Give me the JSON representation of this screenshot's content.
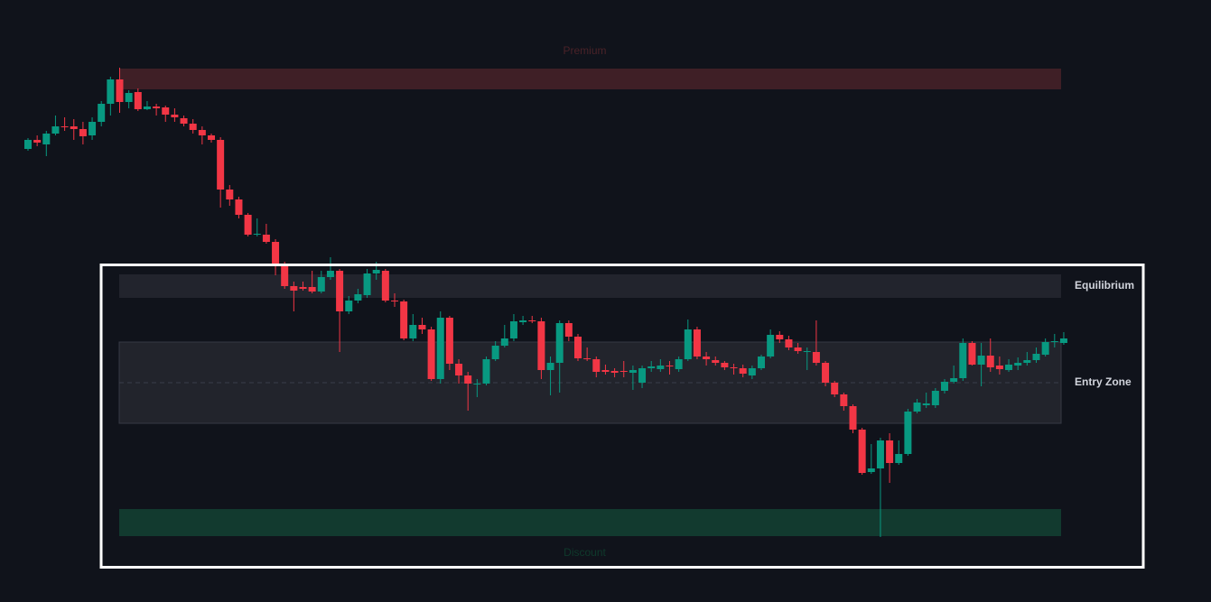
{
  "chart_data": {
    "type": "candlestick",
    "ylim": [
      0,
      667
    ],
    "up_color": "#089981",
    "down_color": "#f23645",
    "open": [
      502,
      512,
      507,
      519,
      527,
      527,
      524,
      517,
      532,
      552,
      579,
      554,
      565,
      546,
      549,
      548,
      540,
      536,
      530,
      523,
      517,
      512,
      457,
      446,
      429,
      407,
      407,
      399,
      375,
      350,
      349,
      349,
      344,
      360,
      367,
      322,
      334,
      340,
      364,
      367,
      334,
      333,
      292,
      307,
      302,
      247,
      315,
      264,
      251,
      241,
      242,
      269,
      284,
      292,
      310,
      312,
      311,
      257,
      265,
      309,
      294,
      270,
      269,
      257,
      256,
      256,
      254,
      243,
      259,
      258,
      262,
      258,
      269,
      302,
      272,
      268,
      265,
      260,
      259,
      251,
      259,
      272,
      296,
      291,
      282,
      277,
      277,
      265,
      243,
      230,
      217,
      191,
      144,
      148,
      179,
      154,
      164,
      211,
      218,
      218,
      234,
      244,
      248,
      287,
      263,
      273,
      262,
      257,
      262,
      265,
      268,
      274,
      288,
      287
    ],
    "high": [
      514,
      517,
      522,
      539,
      537,
      535,
      532,
      537,
      555,
      582,
      592,
      567,
      569,
      555,
      552,
      550,
      547,
      539,
      535,
      527,
      519,
      515,
      462,
      449,
      431,
      425,
      419,
      402,
      377,
      355,
      355,
      367,
      367,
      382,
      369,
      339,
      347,
      369,
      377,
      369,
      342,
      335,
      319,
      315,
      305,
      322,
      317,
      269,
      255,
      247,
      272,
      289,
      307,
      319,
      317,
      317,
      315,
      272,
      312,
      312,
      297,
      282,
      272,
      263,
      259,
      267,
      262,
      262,
      267,
      269,
      267,
      272,
      313,
      305,
      277,
      272,
      267,
      264,
      263,
      262,
      274,
      302,
      300,
      295,
      287,
      282,
      312,
      267,
      245,
      232,
      219,
      193,
      175,
      182,
      187,
      179,
      214,
      225,
      232,
      237,
      247,
      262,
      292,
      289,
      287,
      292,
      272,
      269,
      271,
      277,
      282,
      292,
      297,
      299
    ],
    "low": [
      500,
      505,
      494,
      517,
      522,
      512,
      507,
      512,
      527,
      539,
      542,
      547,
      544,
      545,
      539,
      532,
      532,
      527,
      519,
      507,
      509,
      437,
      439,
      425,
      405,
      405,
      397,
      362,
      347,
      322,
      345,
      342,
      342,
      357,
      277,
      319,
      331,
      337,
      357,
      332,
      327,
      290,
      289,
      297,
      245,
      242,
      257,
      242,
      212,
      227,
      240,
      267,
      282,
      289,
      307,
      309,
      247,
      229,
      232,
      289,
      267,
      267,
      249,
      252,
      249,
      249,
      235,
      237,
      255,
      255,
      252,
      255,
      267,
      269,
      262,
      262,
      257,
      252,
      249,
      247,
      257,
      270,
      287,
      279,
      275,
      257,
      262,
      239,
      227,
      212,
      187,
      141,
      142,
      72,
      132,
      152,
      162,
      209,
      215,
      215,
      231,
      242,
      245,
      262,
      239,
      255,
      252,
      255,
      257,
      262,
      265,
      272,
      282,
      285
    ],
    "close": [
      512,
      509,
      519,
      527,
      526,
      524,
      516,
      532,
      552,
      579,
      554,
      564,
      546,
      549,
      547,
      540,
      537,
      530,
      523,
      517,
      512,
      457,
      446,
      429,
      407,
      408,
      399,
      375,
      350,
      345,
      347,
      344,
      360,
      367,
      322,
      334,
      341,
      364,
      368,
      334,
      333,
      292,
      307,
      302,
      247,
      315,
      264,
      251,
      242,
      242,
      269,
      284,
      292,
      311,
      312,
      311,
      257,
      265,
      309,
      294,
      270,
      269,
      255,
      255,
      254,
      255,
      257,
      259,
      261,
      262,
      261,
      269,
      302,
      272,
      269,
      265,
      260,
      259,
      253,
      259,
      272,
      296,
      291,
      282,
      278,
      278,
      265,
      243,
      230,
      217,
      191,
      143,
      148,
      179,
      154,
      164,
      211,
      221,
      220,
      234,
      244,
      248,
      287,
      263,
      273,
      260,
      258,
      263,
      265,
      268,
      275,
      288,
      289,
      292
    ],
    "zones": [
      {
        "name": "Premium",
        "lower": 568,
        "upper": 591,
        "color": "#3f1f26",
        "label_color": "#4a2228",
        "label_position": "top"
      },
      {
        "name": "Equilibrium",
        "lower": 337,
        "upper": 363,
        "color": "#22242d",
        "label_color": "#d1d4dc",
        "label_position": "right"
      },
      {
        "name": "Entry Zone",
        "lower": 198,
        "upper": 288,
        "midline": 243,
        "color": "#22242c",
        "label_color": "#d1d4dc",
        "label_position": "right"
      },
      {
        "name": "Discount",
        "lower": 73,
        "upper": 103,
        "color": "#123a2f",
        "label_color": "#0f3a2c",
        "label_position": "bottom"
      }
    ]
  }
}
